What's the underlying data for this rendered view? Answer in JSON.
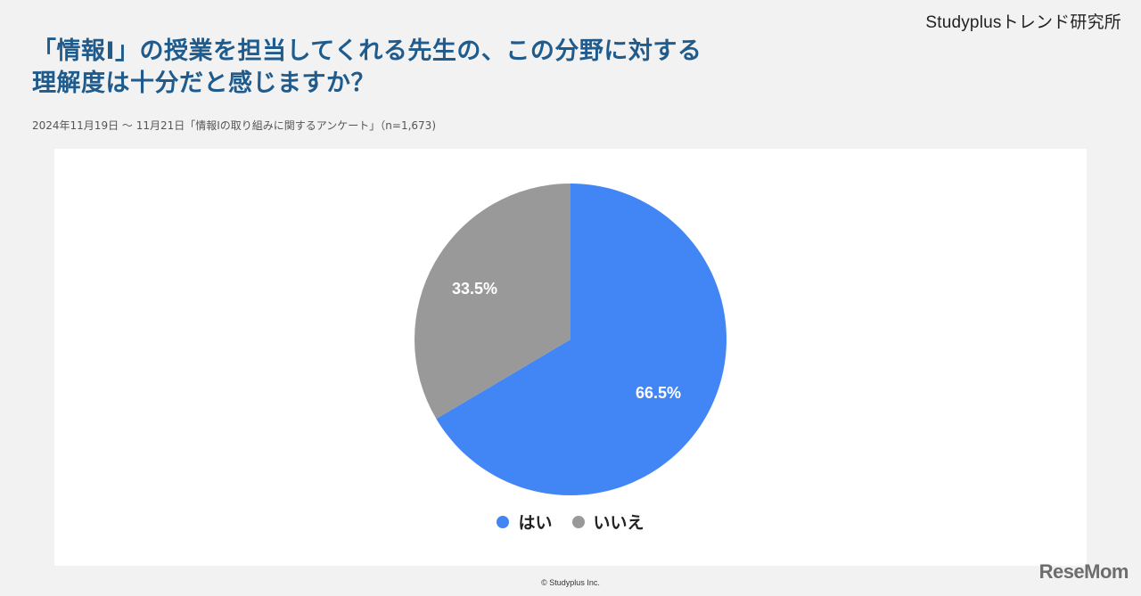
{
  "brand": "Studyplusトレンド研究所",
  "title_line1": "「情報Ⅰ」の授業を担当してくれる先生の、この分野に対する",
  "title_line2": "理解度は十分だと感じますか？",
  "subtitle": "2024年11月19日 ～ 11月21日「情報Ⅰの取り組みに関するアンケート」（n=1,673)",
  "copyright": "© Studyplus Inc.",
  "watermark": "ReseMom",
  "colors": {
    "yes": "#4285f4",
    "no": "#999999",
    "title": "#1f5b8c"
  },
  "chart_data": {
    "type": "pie",
    "title": "「情報Ⅰ」の授業を担当してくれる先生の、この分野に対する理解度は十分だと感じますか？",
    "categories": [
      "はい",
      "いいえ"
    ],
    "values": [
      66.5,
      33.5
    ],
    "labels": [
      "66.5%",
      "33.5%"
    ],
    "colors": [
      "#4285f4",
      "#999999"
    ],
    "legend_position": "bottom",
    "n": 1673
  },
  "legend": [
    {
      "label": "はい"
    },
    {
      "label": "いいえ"
    }
  ]
}
